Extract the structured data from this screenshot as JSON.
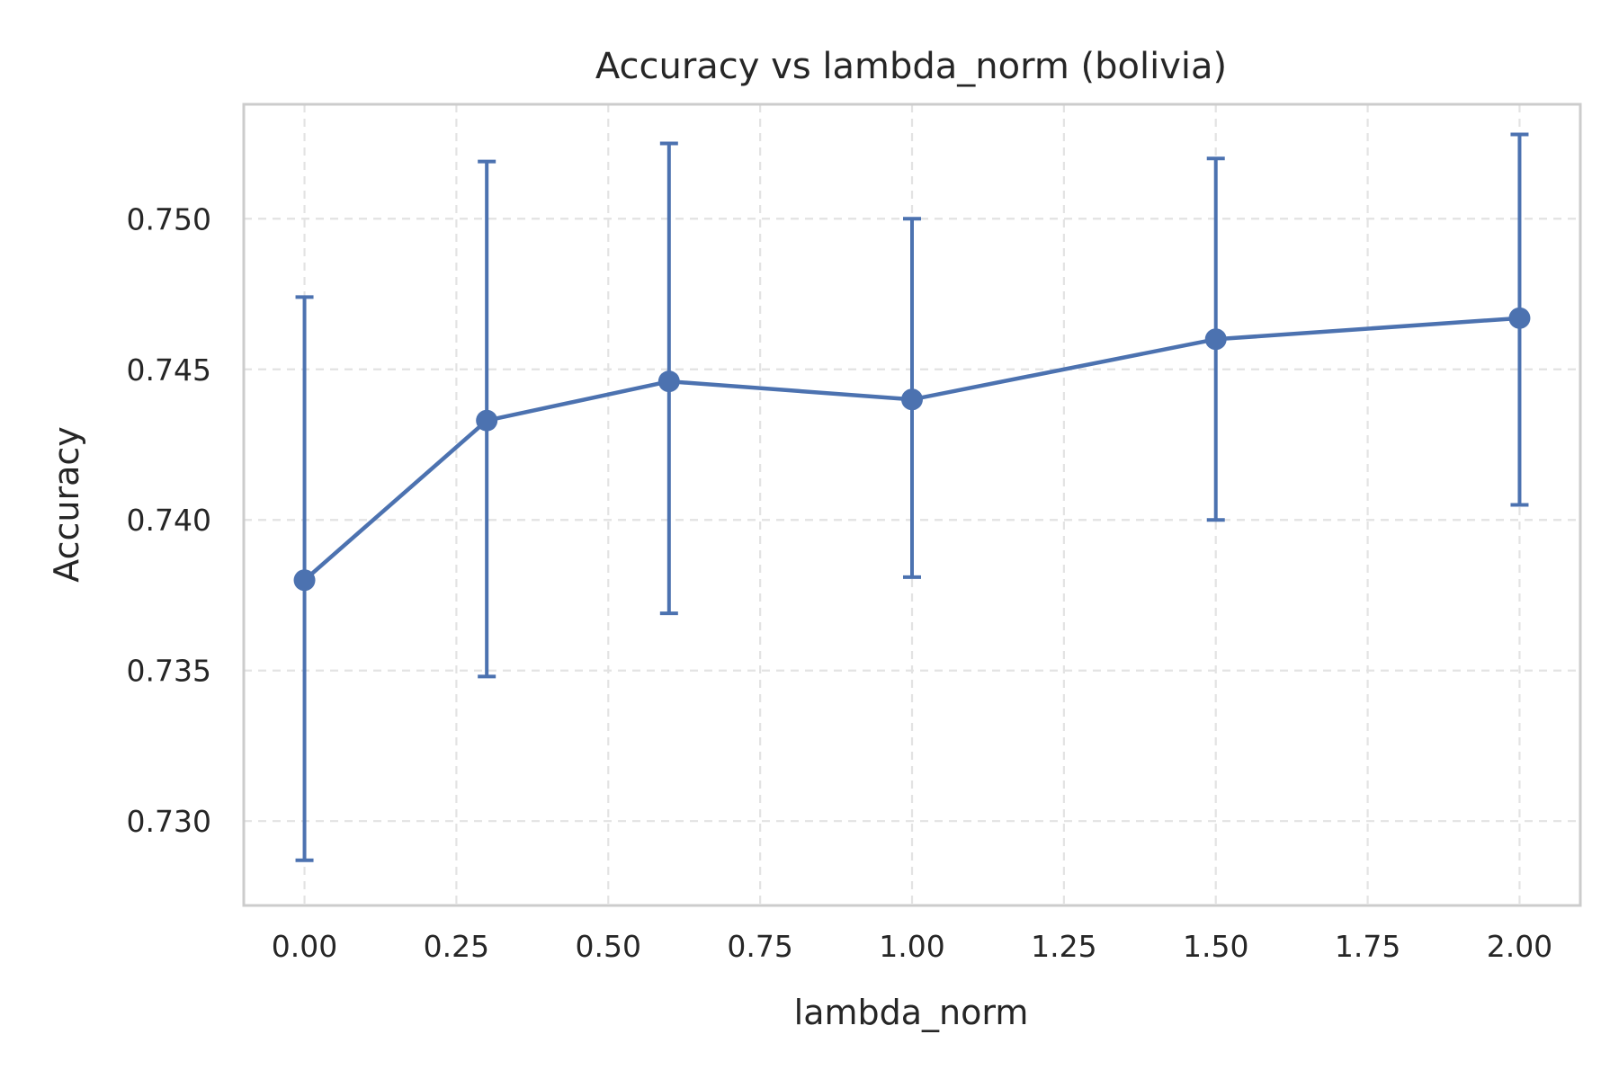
{
  "chart_data": {
    "type": "line",
    "title": "Accuracy vs lambda_norm (bolivia)",
    "xlabel": "lambda_norm",
    "ylabel": "Accuracy",
    "xlim": [
      -0.1,
      2.1
    ],
    "ylim": [
      0.7272,
      0.7538
    ],
    "xticks": [
      0.0,
      0.25,
      0.5,
      0.75,
      1.0,
      1.25,
      1.5,
      1.75,
      2.0
    ],
    "xtick_labels": [
      "0.00",
      "0.25",
      "0.50",
      "0.75",
      "1.00",
      "1.25",
      "1.50",
      "1.75",
      "2.00"
    ],
    "yticks": [
      0.73,
      0.735,
      0.74,
      0.745,
      0.75
    ],
    "ytick_labels": [
      "0.730",
      "0.735",
      "0.740",
      "0.745",
      "0.750"
    ],
    "grid": true,
    "series": [
      {
        "color": "#4c72b0",
        "x": [
          0.0,
          0.3,
          0.6,
          1.0,
          1.5,
          2.0
        ],
        "y": [
          0.738,
          0.7433,
          0.7446,
          0.744,
          0.746,
          0.7467
        ],
        "err_low": [
          0.7287,
          0.7348,
          0.7369,
          0.7381,
          0.74,
          0.7405
        ],
        "err_high": [
          0.7474,
          0.7519,
          0.7525,
          0.75,
          0.752,
          0.7528
        ]
      }
    ]
  }
}
